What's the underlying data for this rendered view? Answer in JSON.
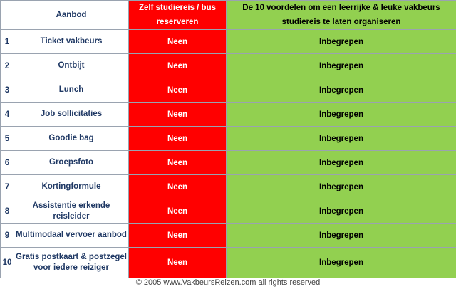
{
  "headers": {
    "offer": "Aanbod",
    "self": "Zelf studiereis / bus reserveren",
    "us": "De 10 voordelen om een leerrijke & leuke vakbeurs studiereis te laten organiseren"
  },
  "rows": [
    {
      "num": "1",
      "offer": "Ticket vakbeurs",
      "self": "Neen",
      "us": "Inbegrepen"
    },
    {
      "num": "2",
      "offer": "Ontbijt",
      "self": "Neen",
      "us": "Inbegrepen"
    },
    {
      "num": "3",
      "offer": "Lunch",
      "self": "Neen",
      "us": "Inbegrepen"
    },
    {
      "num": "4",
      "offer": "Job sollicitaties",
      "self": "Neen",
      "us": "Inbegrepen"
    },
    {
      "num": "5",
      "offer": "Goodie bag",
      "self": "Neen",
      "us": "Inbegrepen"
    },
    {
      "num": "6",
      "offer": "Groepsfoto",
      "self": "Neen",
      "us": "Inbegrepen"
    },
    {
      "num": "7",
      "offer": "Kortingformule",
      "self": "Neen",
      "us": "Inbegrepen"
    },
    {
      "num": "8",
      "offer": "Assistentie erkende reisleider",
      "self": "Neen",
      "us": "Inbegrepen"
    },
    {
      "num": "9",
      "offer": "Multimodaal vervoer aanbod",
      "self": "Neen",
      "us": "Inbegrepen"
    },
    {
      "num": "10",
      "offer": "Gratis postkaart & postzegel voor iedere reiziger",
      "self": "Neen",
      "us": "Inbegrepen"
    }
  ],
  "footer": "© 2005 www.VakbeursReizen.com all rights reserved",
  "colors": {
    "self_bg": "#ff0000",
    "us_bg": "#92d050",
    "label_text": "#1f3864"
  }
}
